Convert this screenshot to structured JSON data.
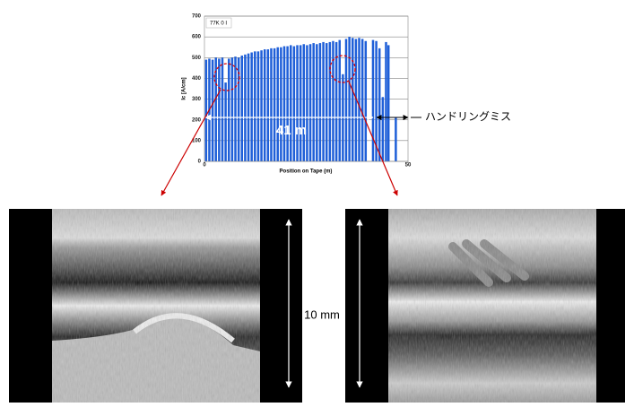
{
  "chart_data": {
    "type": "bar",
    "title": "77K 0 I",
    "x_label": "Position on Tape (m)",
    "y_label": "Ic [A/cm]",
    "x": [
      0.4,
      1.2,
      2.0,
      2.8,
      3.6,
      4.4,
      5.2,
      6.0,
      6.8,
      7.6,
      8.4,
      9.2,
      10.0,
      10.8,
      11.6,
      12.4,
      13.2,
      14.0,
      14.8,
      15.6,
      16.4,
      17.2,
      18.0,
      18.8,
      19.6,
      20.4,
      21.2,
      22.0,
      22.8,
      23.6,
      24.4,
      25.2,
      26.0,
      26.8,
      27.6,
      28.4,
      29.2,
      30.0,
      30.8,
      31.6,
      32.4,
      33.2,
      34.0,
      34.8,
      35.6,
      36.4,
      37.2,
      38.0,
      38.8,
      39.6,
      41.4,
      42.2,
      43.0,
      43.8,
      44.6,
      45.2,
      47.0
    ],
    "values": [
      490,
      495,
      490,
      500,
      495,
      500,
      380,
      495,
      500,
      505,
      500,
      510,
      515,
      520,
      525,
      530,
      530,
      535,
      540,
      540,
      545,
      545,
      550,
      550,
      555,
      555,
      560,
      555,
      560,
      560,
      565,
      560,
      565,
      570,
      565,
      570,
      575,
      570,
      575,
      580,
      575,
      585,
      420,
      590,
      600,
      595,
      590,
      595,
      590,
      580,
      585,
      580,
      545,
      310,
      575,
      560,
      210
    ],
    "color": "#1f5fd8",
    "xlim": [
      0,
      50
    ],
    "xticks": [
      0,
      50
    ],
    "ylim": [
      0,
      700
    ],
    "yticks": [
      0,
      100,
      200,
      300,
      400,
      500,
      600,
      700
    ],
    "grid": true,
    "annotations": [
      "41 m",
      "ハンドリングミス",
      "10 mm"
    ]
  }
}
